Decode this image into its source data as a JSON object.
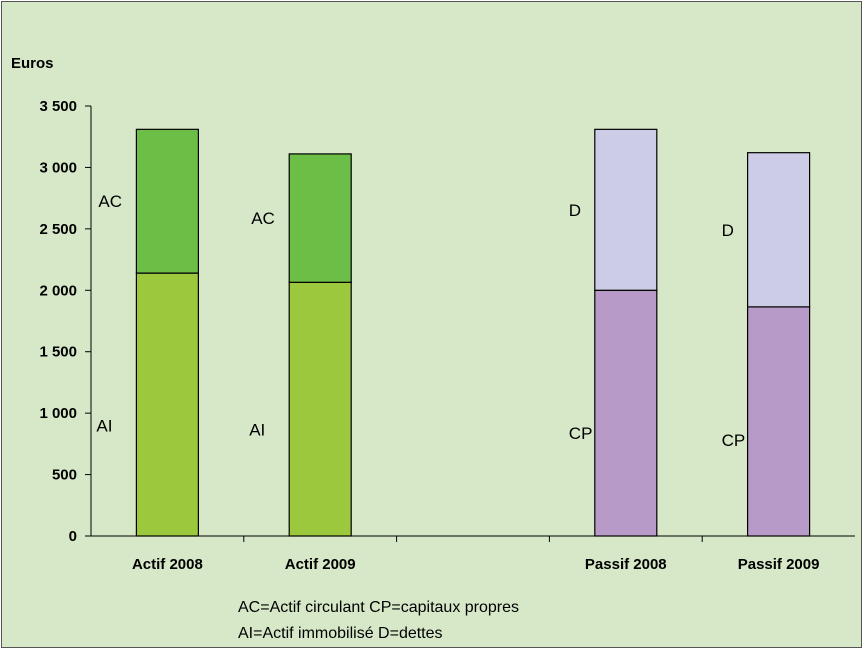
{
  "chart_data": {
    "type": "bar",
    "stacked": true,
    "ylabel": "Euros",
    "ylim": [
      0,
      3500
    ],
    "yticks": [
      0,
      500,
      1000,
      1500,
      2000,
      2500,
      3000,
      3500
    ],
    "ytick_labels": [
      "0",
      "500",
      "1 000",
      "1 500",
      "2 000",
      "2 500",
      "3 000",
      "3 500"
    ],
    "categories": [
      "Actif 2008",
      "Actif 2009",
      "",
      "Passif 2008",
      "Passif 2009"
    ],
    "bars": [
      {
        "category": "Actif 2008",
        "segments": [
          {
            "label": "AI",
            "value": 2140,
            "color": "#9bc83c"
          },
          {
            "label": "AC",
            "value": 1170,
            "color": "#6bbf47"
          }
        ]
      },
      {
        "category": "Actif 2009",
        "segments": [
          {
            "label": "AI",
            "value": 2065,
            "color": "#9bc83c"
          },
          {
            "label": "AC",
            "value": 1045,
            "color": "#6bbf47"
          }
        ]
      },
      {
        "category": "",
        "segments": []
      },
      {
        "category": "Passif 2008",
        "segments": [
          {
            "label": "CP",
            "value": 2000,
            "color": "#b89ac8"
          },
          {
            "label": "D",
            "value": 1310,
            "color": "#cccce6"
          }
        ]
      },
      {
        "category": "Passif 2009",
        "segments": [
          {
            "label": "CP",
            "value": 1865,
            "color": "#b89ac8"
          },
          {
            "label": "D",
            "value": 1255,
            "color": "#cccce6"
          }
        ]
      }
    ],
    "notes": [
      "AC=Actif circulant CP=capitaux propres",
      "AI=Actif immobilisé D=dettes"
    ],
    "background": "#d7e8c8",
    "grid": false,
    "legend": "none"
  }
}
